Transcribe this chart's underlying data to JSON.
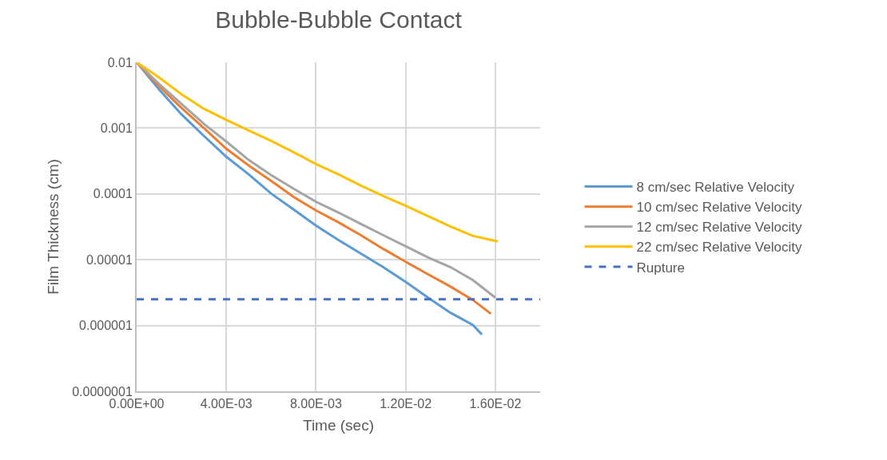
{
  "chart_data": {
    "type": "line",
    "title": "Bubble-Bubble Contact",
    "xlabel": "Time (sec)",
    "ylabel": "Film Thickness (cm)",
    "log": "y",
    "grid": true,
    "legend": "right",
    "marker": "none",
    "line_style": "solid",
    "xlim": [
      0,
      0.018
    ],
    "xticks": [
      {
        "value": 0,
        "label": "0.00E+00"
      },
      {
        "value": 0.004,
        "label": "4.00E-03"
      },
      {
        "value": 0.008,
        "label": "8.00E-03"
      },
      {
        "value": 0.012,
        "label": "1.20E-02"
      },
      {
        "value": 0.016,
        "label": "1.60E-02"
      }
    ],
    "ylim": [
      1e-07,
      0.01
    ],
    "yticks": [
      {
        "value": 1e-07,
        "label": "0.0000001"
      },
      {
        "value": 1e-06,
        "label": "0.000001"
      },
      {
        "value": 1e-05,
        "label": "0.00001"
      },
      {
        "value": 0.0001,
        "label": "0.0001"
      },
      {
        "value": 0.001,
        "label": "0.001"
      },
      {
        "value": 0.01,
        "label": "0.01"
      }
    ],
    "series": [
      {
        "name": "8 cm/sec Relative Velocity",
        "color": "#5b9bd5",
        "x": [
          0,
          0.001,
          0.002,
          0.003,
          0.004,
          0.005,
          0.006,
          0.007,
          0.008,
          0.009,
          0.01,
          0.011,
          0.012,
          0.013,
          0.014,
          0.015,
          0.0154
        ],
        "values": [
          0.01,
          0.00386,
          0.00162,
          0.00076,
          0.000367,
          0.000198,
          0.000101,
          5.8e-05,
          3.3e-05,
          2e-05,
          1.24e-05,
          7.7e-06,
          4.6e-06,
          2.65e-06,
          1.56e-06,
          1.02e-06,
          7.3e-07
        ]
      },
      {
        "name": "10 cm/sec Relative Velocity",
        "color": "#ed7d31",
        "x": [
          0,
          0.001,
          0.002,
          0.003,
          0.004,
          0.005,
          0.006,
          0.007,
          0.008,
          0.009,
          0.01,
          0.011,
          0.012,
          0.013,
          0.014,
          0.015,
          0.0158
        ],
        "values": [
          0.01,
          0.00432,
          0.00203,
          0.001,
          0.000485,
          0.00027,
          0.000158,
          9e-05,
          5.6e-05,
          3.7e-05,
          2.36e-05,
          1.46e-05,
          9.3e-06,
          6e-06,
          3.9e-06,
          2.44e-06,
          1.51e-06
        ]
      },
      {
        "name": "12 cm/sec Relative Velocity",
        "color": "#a5a5a5",
        "x": [
          0,
          0.001,
          0.002,
          0.003,
          0.004,
          0.005,
          0.006,
          0.007,
          0.008,
          0.009,
          0.01,
          0.011,
          0.012,
          0.013,
          0.014,
          0.015,
          0.016
        ],
        "values": [
          0.01,
          0.0047,
          0.00233,
          0.00116,
          0.000625,
          0.000328,
          0.000193,
          0.00012,
          7.6e-05,
          5.2e-05,
          3.5e-05,
          2.36e-05,
          1.6e-05,
          1.08e-05,
          7.7e-06,
          4.9e-06,
          2.65e-06
        ]
      },
      {
        "name": "22 cm/sec Relative Velocity",
        "color": "#ffc000",
        "x": [
          0,
          0.001,
          0.002,
          0.003,
          0.004,
          0.005,
          0.006,
          0.007,
          0.008,
          0.009,
          0.01,
          0.011,
          0.012,
          0.013,
          0.014,
          0.015,
          0.0161
        ],
        "values": [
          0.01,
          0.00587,
          0.00326,
          0.00197,
          0.00133,
          0.00092,
          0.00064,
          0.00043,
          0.000285,
          0.000198,
          0.000134,
          9.3e-05,
          6.6e-05,
          4.6e-05,
          3.2e-05,
          2.3e-05,
          1.9e-05
        ]
      }
    ],
    "ref_lines": [
      {
        "axis": "y",
        "value": 2.5e-06,
        "label": "Rupture",
        "color": "#4472c4",
        "line_style": "dashed"
      }
    ]
  }
}
